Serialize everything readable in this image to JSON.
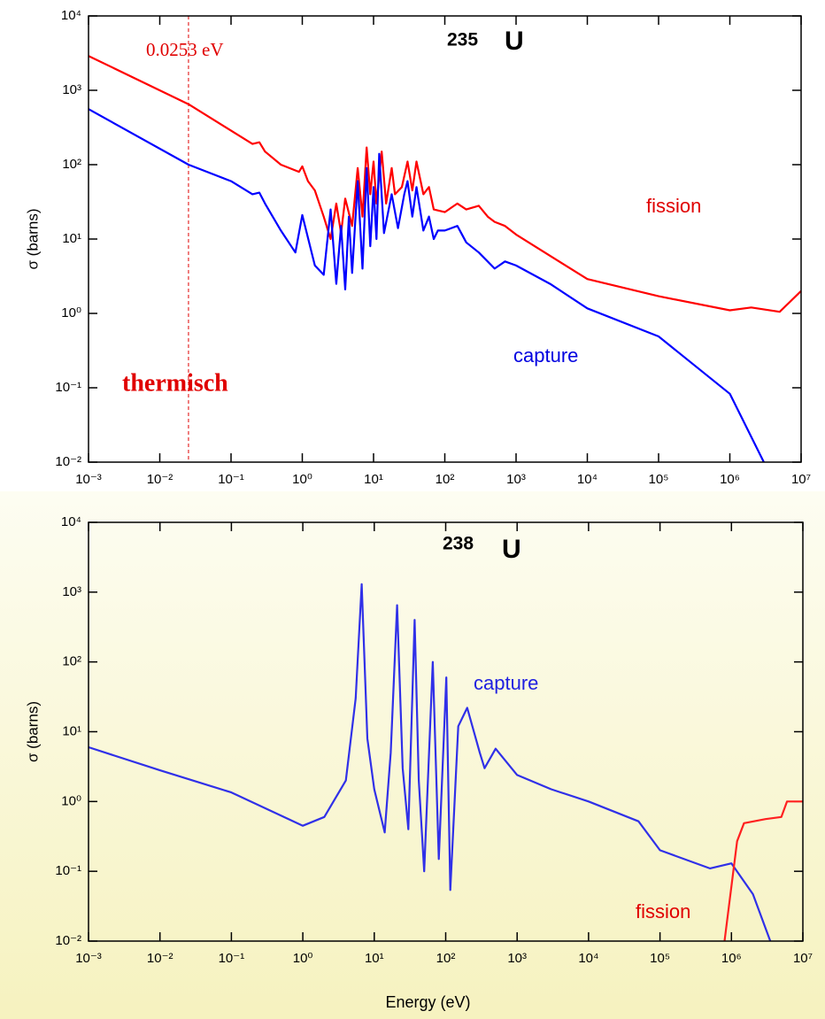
{
  "chart_data": [
    {
      "type": "line",
      "title_mass": "235",
      "title_element": "U",
      "ylabel": "σ (barns)",
      "xscale": "log",
      "yscale": "log",
      "xlim": [
        0.001,
        10000000
      ],
      "ylim": [
        0.01,
        10000
      ],
      "xticks": [
        {
          "value": 0.001,
          "label": "10⁻³"
        },
        {
          "value": 0.01,
          "label": "10⁻²"
        },
        {
          "value": 0.1,
          "label": "10⁻¹"
        },
        {
          "value": 1,
          "label": "10⁰"
        },
        {
          "value": 10,
          "label": "10¹"
        },
        {
          "value": 100,
          "label": "10²"
        },
        {
          "value": 1000,
          "label": "10³"
        },
        {
          "value": 10000,
          "label": "10⁴"
        },
        {
          "value": 100000,
          "label": "10⁵"
        },
        {
          "value": 1000000,
          "label": "10⁶"
        },
        {
          "value": 10000000,
          "label": "10⁷"
        }
      ],
      "yticks": [
        {
          "value": 0.01,
          "label": "10⁻²"
        },
        {
          "value": 0.1,
          "label": "10⁻¹"
        },
        {
          "value": 1,
          "label": "10⁰"
        },
        {
          "value": 10,
          "label": "10¹"
        },
        {
          "value": 100,
          "label": "10²"
        },
        {
          "value": 1000,
          "label": "10³"
        },
        {
          "value": 10000,
          "label": "10⁴"
        }
      ],
      "vline": {
        "x": 0.0253,
        "label": "0.0253 eV",
        "color": "#e00000"
      },
      "annotations": [
        {
          "text": "fission",
          "color": "#e00000"
        },
        {
          "text": "capture",
          "color": "#0000e0"
        },
        {
          "text": "thermisch",
          "color": "#e00000"
        }
      ],
      "series": [
        {
          "name": "fission",
          "color": "#ff0000",
          "x": [
            0.001,
            0.0253,
            0.2,
            0.25,
            0.3,
            0.5,
            0.9,
            1.0,
            1.2,
            1.5,
            2,
            2.5,
            3,
            3.5,
            4,
            5,
            6,
            7,
            8,
            9,
            10,
            11,
            13,
            15,
            18,
            20,
            25,
            30,
            35,
            40,
            50,
            60,
            70,
            100,
            150,
            200,
            300,
            400,
            500,
            700,
            1000,
            10000,
            100000,
            1000000,
            2000000,
            5000000,
            10000000
          ],
          "values": [
            2900,
            650,
            190,
            200,
            150,
            100,
            80,
            95,
            60,
            45,
            20,
            10,
            30,
            12,
            35,
            15,
            90,
            20,
            170,
            40,
            110,
            30,
            150,
            30,
            90,
            40,
            50,
            110,
            45,
            110,
            40,
            50,
            25,
            23,
            30,
            25,
            28,
            20,
            17,
            15,
            11.5,
            2.9,
            1.7,
            1.1,
            1.2,
            1.05,
            2
          ]
        },
        {
          "name": "capture",
          "color": "#0000ff",
          "x": [
            0.001,
            0.0253,
            0.1,
            0.2,
            0.25,
            0.3,
            0.5,
            0.8,
            1.0,
            1.5,
            2,
            2.5,
            3,
            3.5,
            4,
            4.5,
            5,
            6,
            7,
            8,
            9,
            10,
            11,
            12,
            14,
            18,
            22,
            27,
            30,
            35,
            40,
            50,
            60,
            70,
            80,
            100,
            150,
            200,
            300,
            500,
            700,
            1000,
            3000,
            10000,
            100000,
            1000000,
            3000000
          ],
          "values": [
            560,
            100,
            60,
            40,
            42,
            30,
            13,
            6.6,
            21,
            4.4,
            3.3,
            25,
            2.5,
            15,
            2.1,
            20,
            3.5,
            60,
            4,
            90,
            8,
            50,
            10,
            140,
            12,
            40,
            14,
            40,
            60,
            20,
            50,
            13,
            20,
            10,
            13,
            13,
            15,
            9,
            6.6,
            4,
            5,
            4.4,
            2.5,
            1.17,
            0.49,
            0.083,
            0.01
          ]
        }
      ]
    },
    {
      "type": "line",
      "title_mass": "238",
      "title_element": "U",
      "ylabel": "σ (barns)",
      "xlabel": "Energy (eV)",
      "xscale": "log",
      "yscale": "log",
      "xlim": [
        0.001,
        10000000
      ],
      "ylim": [
        0.01,
        10000
      ],
      "xticks": [
        {
          "value": 0.001,
          "label": "10⁻³"
        },
        {
          "value": 0.01,
          "label": "10⁻²"
        },
        {
          "value": 0.1,
          "label": "10⁻¹"
        },
        {
          "value": 1,
          "label": "10⁰"
        },
        {
          "value": 10,
          "label": "10¹"
        },
        {
          "value": 100,
          "label": "10²"
        },
        {
          "value": 1000,
          "label": "10³"
        },
        {
          "value": 10000,
          "label": "10⁴"
        },
        {
          "value": 100000,
          "label": "10⁵"
        },
        {
          "value": 1000000,
          "label": "10⁶"
        },
        {
          "value": 10000000,
          "label": "10⁷"
        }
      ],
      "yticks": [
        {
          "value": 0.01,
          "label": "10⁻²"
        },
        {
          "value": 0.1,
          "label": "10⁻¹"
        },
        {
          "value": 1,
          "label": "10⁰"
        },
        {
          "value": 10,
          "label": "10¹"
        },
        {
          "value": 100,
          "label": "10²"
        },
        {
          "value": 1000,
          "label": "10³"
        },
        {
          "value": 10000,
          "label": "10⁴"
        }
      ],
      "annotations": [
        {
          "text": "capture",
          "color": "#2020e0"
        },
        {
          "text": "fission",
          "color": "#e00000"
        }
      ],
      "series": [
        {
          "name": "capture",
          "color": "#3030e8",
          "x": [
            0.001,
            0.01,
            0.1,
            1,
            2,
            4,
            5.5,
            6.67,
            8,
            10,
            14,
            17,
            20.9,
            25,
            30,
            36.7,
            42,
            50,
            66,
            80,
            102,
            116,
            150,
            200,
            300,
            350,
            500,
            1000,
            3000,
            10000,
            50000,
            100000,
            500000,
            1000000,
            2000000,
            3500000
          ],
          "values": [
            6,
            2.8,
            1.35,
            0.45,
            0.6,
            2,
            30,
            1300,
            8,
            1.5,
            0.36,
            5,
            650,
            3,
            0.4,
            400,
            2,
            0.1,
            100,
            0.15,
            60,
            0.054,
            12,
            22,
            5,
            3,
            5.7,
            2.4,
            1.5,
            1,
            0.52,
            0.2,
            0.11,
            0.13,
            0.047,
            0.01
          ]
        },
        {
          "name": "fission",
          "color": "#ff2020",
          "x": [
            800000,
            1200000,
            1500000,
            3000000,
            5000000,
            6000000,
            10000000
          ],
          "values": [
            0.01,
            0.27,
            0.49,
            0.56,
            0.6,
            1,
            1
          ]
        }
      ]
    }
  ]
}
